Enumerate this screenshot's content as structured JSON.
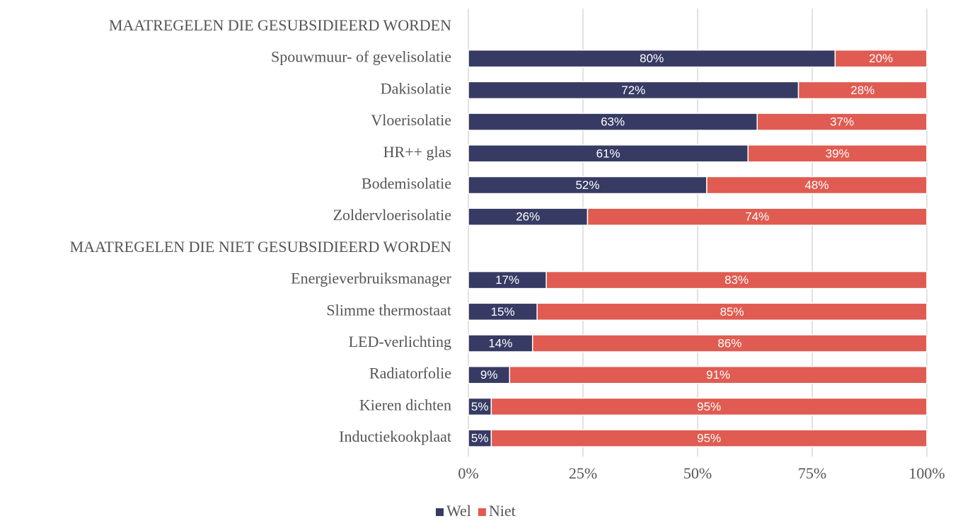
{
  "chart_data": {
    "type": "stacked_bar_horizontal",
    "categories": [
      "MAATREGELEN DIE GESUBSIDIEERD WORDEN",
      "Spouwmuur- of gevelisolatie",
      "Dakisolatie",
      "Vloerisolatie",
      "HR++ glas",
      "Bodemisolatie",
      "Zoldervloerisolatie",
      "MAATREGELEN DIE NIET GESUBSIDIEERD WORDEN",
      "Energieverbruiksmanager",
      "Slimme thermostaat",
      "LED-verlichting",
      "Radiatorfolie",
      "Kieren dichten",
      "Inductiekookplaat"
    ],
    "series": [
      {
        "name": "Wel",
        "color": "#373b64",
        "values": [
          null,
          80,
          72,
          63,
          61,
          52,
          26,
          null,
          17,
          15,
          14,
          9,
          5,
          5
        ],
        "value_labels": [
          null,
          "80%",
          "72%",
          "63%",
          "61%",
          "52%",
          "26%",
          null,
          "17%",
          "15%",
          "14%",
          "9%",
          "5%",
          "5%"
        ]
      },
      {
        "name": "Niet",
        "color": "#e05b51",
        "values": [
          null,
          20,
          28,
          37,
          39,
          48,
          74,
          null,
          83,
          85,
          86,
          91,
          95,
          95
        ],
        "value_labels": [
          null,
          "20%",
          "28%",
          "37%",
          "39%",
          "48%",
          "74%",
          null,
          "83%",
          "85%",
          "86%",
          "91%",
          "95%",
          "95%"
        ]
      }
    ],
    "xlim": [
      0,
      100
    ],
    "xticks": [
      {
        "value": 0,
        "label": "0%"
      },
      {
        "value": 25,
        "label": "25%"
      },
      {
        "value": 50,
        "label": "50%"
      },
      {
        "value": 75,
        "label": "75%"
      },
      {
        "value": 100,
        "label": "100%"
      }
    ],
    "grid": true,
    "legend": "bottom"
  }
}
